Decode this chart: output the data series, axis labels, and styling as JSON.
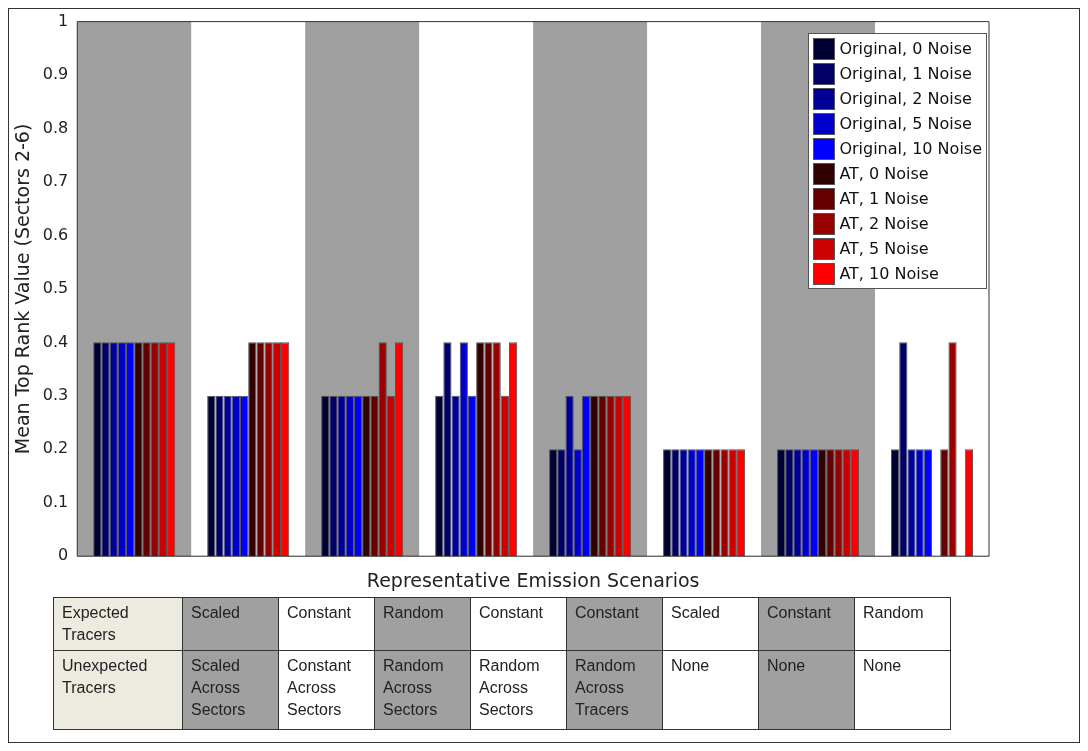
{
  "chart_data": {
    "type": "bar",
    "xlabel": "Representative Emission Scenarios",
    "ylabel": "Mean Top Rank Value (Sectors 2-6)",
    "categories": [
      null,
      null,
      null,
      null,
      null,
      null,
      null,
      null
    ],
    "series": [
      {
        "name": "Original, 0 Noise",
        "color": "#000033",
        "values": [
          0.4,
          0.3,
          0.3,
          0.3,
          0.2,
          0.2,
          0.2,
          0.2
        ]
      },
      {
        "name": "Original, 1 Noise",
        "color": "#000066",
        "values": [
          0.4,
          0.3,
          0.3,
          0.4,
          0.2,
          0.2,
          0.2,
          0.4
        ]
      },
      {
        "name": "Original, 2 Noise",
        "color": "#000099",
        "values": [
          0.4,
          0.3,
          0.3,
          0.3,
          0.3,
          0.2,
          0.2,
          0.2
        ]
      },
      {
        "name": "Original, 5 Noise",
        "color": "#0000cc",
        "values": [
          0.4,
          0.3,
          0.3,
          0.4,
          0.2,
          0.2,
          0.2,
          0.2
        ]
      },
      {
        "name": "Original, 10 Noise",
        "color": "#0000ff",
        "values": [
          0.4,
          0.3,
          0.3,
          0.3,
          0.3,
          0.2,
          0.2,
          0.2
        ]
      },
      {
        "name": "AT, 0 Noise",
        "color": "#330000",
        "values": [
          0.4,
          0.4,
          0.3,
          0.4,
          0.3,
          0.2,
          0.2,
          0
        ]
      },
      {
        "name": "AT, 1 Noise",
        "color": "#660000",
        "values": [
          0.4,
          0.4,
          0.3,
          0.4,
          0.3,
          0.2,
          0.2,
          0.2
        ]
      },
      {
        "name": "AT, 2 Noise",
        "color": "#990000",
        "values": [
          0.4,
          0.4,
          0.4,
          0.4,
          0.3,
          0.2,
          0.2,
          0.4
        ]
      },
      {
        "name": "AT, 5 Noise",
        "color": "#cc0000",
        "values": [
          0.4,
          0.4,
          0.3,
          0.3,
          0.3,
          0.2,
          0.2,
          0
        ]
      },
      {
        "name": "AT, 10 Noise",
        "color": "#ff0000",
        "values": [
          0.4,
          0.4,
          0.4,
          0.4,
          0.3,
          0.2,
          0.2,
          0.2
        ]
      }
    ],
    "ylim": [
      0,
      1
    ],
    "yticks": [
      0,
      0.1,
      0.2,
      0.3,
      0.4,
      0.5,
      0.6,
      0.7,
      0.8,
      0.9,
      1
    ],
    "legend": "top right",
    "annotations": [
      "Expected Tracers",
      "Scaled",
      "Constant",
      "Random",
      "Constant",
      "Constant",
      "Scaled",
      "Constant",
      "Random",
      "Unexpected Tracers",
      "Scaled Across Sectors",
      "Constant Across Sectors",
      "Random Across Sectors",
      "Random Across Sectors",
      "Random Across Tracers",
      "None",
      "None",
      "None"
    ]
  }
}
